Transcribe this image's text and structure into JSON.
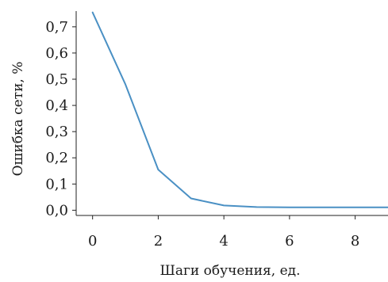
{
  "chart_data": {
    "type": "line",
    "title": "",
    "xlabel": "Шаги обучения, ед.",
    "ylabel": "Ошибка сети, %",
    "xlim": [
      -0.5,
      9
    ],
    "ylim": [
      -0.02,
      0.76
    ],
    "x_ticks": [
      0,
      2,
      4,
      6,
      8
    ],
    "x_tick_labels": [
      "0",
      "2",
      "4",
      "6",
      "8"
    ],
    "y_ticks": [
      0.0,
      0.1,
      0.2,
      0.3,
      0.4,
      0.5,
      0.6,
      0.7
    ],
    "y_tick_labels": [
      "0,0",
      "0,1",
      "0,2",
      "0,3",
      "0,4",
      "0,5",
      "0,6",
      "0,7"
    ],
    "grid": false,
    "legend": "none",
    "series": [
      {
        "color": "#4a90c4",
        "x": [
          0,
          1,
          2,
          3,
          4,
          5,
          6,
          7,
          8,
          9
        ],
        "y": [
          0.755,
          0.48,
          0.155,
          0.045,
          0.018,
          0.012,
          0.011,
          0.011,
          0.011,
          0.011
        ]
      }
    ]
  }
}
